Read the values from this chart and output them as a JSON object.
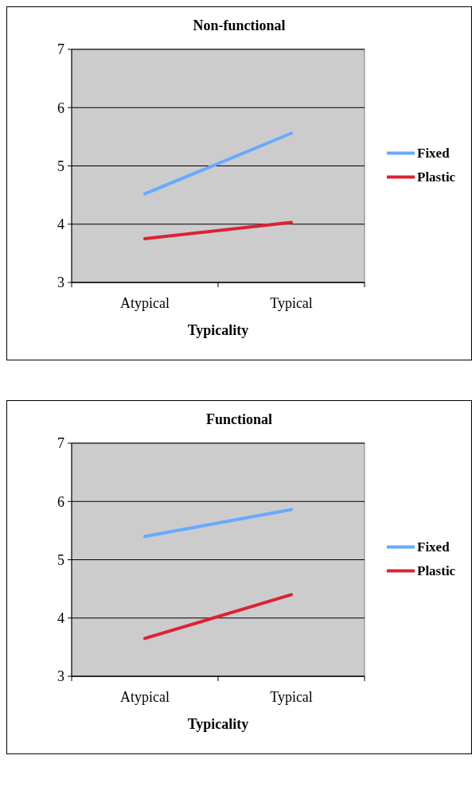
{
  "chart_data": [
    {
      "type": "line",
      "title": "Non-functional",
      "xlabel": "Typicality",
      "categories": [
        "Atypical",
        "Typical"
      ],
      "series": [
        {
          "name": "Fixed",
          "color": "#66aaff",
          "values": [
            4.52,
            5.56
          ]
        },
        {
          "name": "Plastic",
          "color": "#dd2233",
          "values": [
            3.75,
            4.03
          ]
        }
      ],
      "ylim": [
        3,
        7
      ],
      "yticks": [
        3,
        4,
        5,
        6,
        7
      ],
      "grid": "y",
      "legend": "right",
      "marker": "none"
    },
    {
      "type": "line",
      "title": "Functional",
      "xlabel": "Typicality",
      "categories": [
        "Atypical",
        "Typical"
      ],
      "series": [
        {
          "name": "Fixed",
          "color": "#66aaff",
          "values": [
            5.4,
            5.86
          ]
        },
        {
          "name": "Plastic",
          "color": "#dd2233",
          "values": [
            3.65,
            4.4
          ]
        }
      ],
      "ylim": [
        3,
        7
      ],
      "yticks": [
        3,
        4,
        5,
        6,
        7
      ],
      "grid": "y",
      "legend": "right",
      "marker": "none"
    }
  ]
}
